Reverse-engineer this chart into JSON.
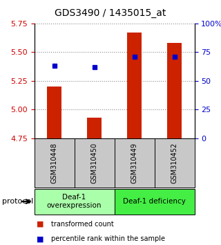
{
  "title": "GDS3490 / 1435015_at",
  "samples": [
    "GSM310448",
    "GSM310450",
    "GSM310449",
    "GSM310452"
  ],
  "bar_values": [
    5.2,
    4.93,
    5.67,
    5.58
  ],
  "bar_bottom": 4.75,
  "percentile_values": [
    5.38,
    5.37,
    5.46,
    5.46
  ],
  "ylim": [
    4.75,
    5.75
  ],
  "yticks_left": [
    4.75,
    5.0,
    5.25,
    5.5,
    5.75
  ],
  "yticks_right": [
    0,
    25,
    50,
    75,
    100
  ],
  "bar_color": "#cc2200",
  "marker_color": "#0000cc",
  "groups": [
    {
      "label": "Deaf-1\noverexpression",
      "color": "#aaffaa"
    },
    {
      "label": "Deaf-1 deficiency",
      "color": "#44ee44"
    }
  ],
  "protocol_label": "protocol",
  "sample_bg_color": "#c8c8c8",
  "legend_items": [
    {
      "color": "#cc2200",
      "label": "transformed count"
    },
    {
      "color": "#0000cc",
      "label": "percentile rank within the sample"
    }
  ],
  "tick_label_color_left": "#cc0000",
  "tick_label_color_right": "#0000cc"
}
